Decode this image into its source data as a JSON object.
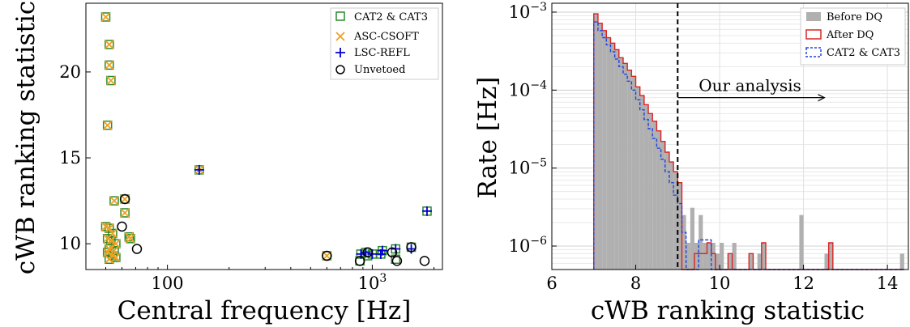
{
  "chart_data": [
    {
      "type": "scatter",
      "xscale": "log",
      "xlim": [
        40,
        2200
      ],
      "ylim": [
        8.5,
        24
      ],
      "xlabel": "Central frequency [Hz]",
      "ylabel": "cWB ranking statistic",
      "xticks": [
        {
          "label": "100",
          "value": 100
        },
        {
          "label": "10",
          "exp": "3",
          "value": 1000
        }
      ],
      "yticks": [
        10,
        15,
        20
      ],
      "legend_position": "top-right",
      "legend": [
        "CAT2 & CAT3",
        "ASC-CSOFT",
        "LSC-REFL",
        "Unvetoed"
      ],
      "series": [
        {
          "name": "CAT2 & CAT3",
          "marker": "square",
          "color": "#2a8a2a",
          "points": [
            [
              50,
              23.2
            ],
            [
              52,
              21.6
            ],
            [
              52,
              20.4
            ],
            [
              53,
              19.5
            ],
            [
              51,
              16.9
            ],
            [
              55,
              12.5
            ],
            [
              50,
              11.0
            ],
            [
              52,
              10.9
            ],
            [
              54,
              10.6
            ],
            [
              51,
              10.3
            ],
            [
              53,
              10.2
            ],
            [
              56,
              10.0
            ],
            [
              52,
              9.7
            ],
            [
              55,
              9.6
            ],
            [
              51,
              9.5
            ],
            [
              54,
              9.3
            ],
            [
              52,
              9.1
            ],
            [
              56,
              9.2
            ],
            [
              62,
              12.6
            ],
            [
              62,
              11.8
            ],
            [
              65,
              10.4
            ],
            [
              66,
              10.3
            ],
            [
              143,
              14.3
            ],
            [
              600,
              9.3
            ],
            [
              870,
              9.0
            ],
            [
              880,
              9.4
            ],
            [
              930,
              9.5
            ],
            [
              950,
              9.3
            ],
            [
              1000,
              9.4
            ],
            [
              1100,
              9.4
            ],
            [
              1120,
              9.6
            ],
            [
              1300,
              9.7
            ],
            [
              1300,
              9.1
            ],
            [
              1550,
              9.8
            ],
            [
              1850,
              11.9
            ]
          ]
        },
        {
          "name": "ASC-CSOFT",
          "marker": "x",
          "color": "#f0a020",
          "points": [
            [
              50,
              23.2
            ],
            [
              52,
              21.6
            ],
            [
              52,
              20.4
            ],
            [
              53,
              19.5
            ],
            [
              51,
              16.9
            ],
            [
              55,
              12.5
            ],
            [
              50,
              11.0
            ],
            [
              52,
              10.9
            ],
            [
              54,
              10.6
            ],
            [
              51,
              10.3
            ],
            [
              53,
              10.2
            ],
            [
              56,
              10.0
            ],
            [
              52,
              9.7
            ],
            [
              55,
              9.6
            ],
            [
              51,
              9.5
            ],
            [
              54,
              9.3
            ],
            [
              52,
              9.1
            ],
            [
              56,
              9.2
            ],
            [
              62,
              12.6
            ],
            [
              62,
              11.8
            ],
            [
              65,
              10.4
            ],
            [
              66,
              10.3
            ],
            [
              143,
              14.3
            ],
            [
              600,
              9.3
            ]
          ]
        },
        {
          "name": "LSC-REFL",
          "marker": "plus",
          "color": "#0000cc",
          "points": [
            [
              143,
              14.3
            ],
            [
              880,
              9.4
            ],
            [
              930,
              9.5
            ],
            [
              1000,
              9.4
            ],
            [
              1100,
              9.4
            ],
            [
              1120,
              9.6
            ],
            [
              1300,
              9.7
            ],
            [
              1550,
              9.7
            ],
            [
              1850,
              11.9
            ]
          ]
        },
        {
          "name": "Unvetoed",
          "marker": "circle",
          "color": "#000000",
          "points": [
            [
              62,
              12.6
            ],
            [
              60,
              11.0
            ],
            [
              71,
              9.7
            ],
            [
              600,
              9.3
            ],
            [
              870,
              9.0
            ],
            [
              950,
              9.5
            ],
            [
              1250,
              9.5
            ],
            [
              1320,
              9.0
            ],
            [
              1550,
              9.8
            ],
            [
              1800,
              9.0
            ]
          ]
        }
      ]
    },
    {
      "type": "histogram",
      "yscale": "log",
      "xlim": [
        6,
        14.5
      ],
      "ylim": [
        5e-07,
        0.0013
      ],
      "xlabel": "cWB ranking statistic",
      "ylabel": "Rate [Hz]",
      "xticks": [
        6,
        8,
        10,
        12,
        14
      ],
      "yticks": [
        {
          "label": "10",
          "exp": "−6",
          "value": 1e-06
        },
        {
          "label": "10",
          "exp": "−5",
          "value": 1e-05
        },
        {
          "label": "10",
          "exp": "−4",
          "value": 0.0001
        },
        {
          "label": "10",
          "exp": "−3",
          "value": 0.001
        }
      ],
      "threshold": 9,
      "annotation": "Our analysis",
      "legend_position": "top-right",
      "legend": [
        "Before DQ",
        "After DQ",
        "CAT2 & CAT3"
      ],
      "bin_edges": [
        7.0,
        7.1,
        7.2,
        7.3,
        7.4,
        7.5,
        7.6,
        7.7,
        7.8,
        7.9,
        8.0,
        8.1,
        8.2,
        8.3,
        8.4,
        8.5,
        8.6,
        8.7,
        8.8,
        8.9,
        9.0,
        9.1,
        9.2,
        9.3,
        9.4,
        9.5,
        9.6,
        9.7,
        9.8,
        9.9,
        10.0,
        10.1,
        10.2,
        10.3,
        10.4,
        10.5,
        10.6,
        10.7,
        10.8,
        10.9,
        11.0,
        11.1,
        11.2,
        11.3,
        11.4,
        11.5,
        11.6,
        11.7,
        11.8,
        11.9,
        12.0,
        12.1,
        12.2,
        12.3,
        12.4,
        12.5,
        12.6,
        12.7,
        12.8,
        12.9,
        13.0,
        13.1,
        13.2,
        13.3,
        13.4,
        13.5,
        13.6,
        13.7,
        13.8,
        13.9,
        14.0,
        14.1,
        14.2,
        14.3,
        14.4
      ],
      "series": [
        {
          "name": "Before DQ",
          "style": "filled",
          "color": "#b0b0b0",
          "values": [
            0.00095,
            0.00072,
            0.00058,
            0.00047,
            0.0004,
            0.00033,
            0.00026,
            0.00022,
            0.00018,
            0.00015,
            0.00011,
            8.5e-05,
            6.5e-05,
            5e-05,
            4e-05,
            3e-05,
            2.2e-05,
            1.6e-05,
            1.2e-05,
            9e-06,
            6.5e-06,
            2.5e-06,
            1.1e-06,
            3.1e-06,
            1.1e-06,
            2.5e-06,
            1.1e-06,
            1.1e-06,
            1.1e-06,
            8e-07,
            1.1e-06,
            0,
            8e-07,
            1.1e-06,
            0,
            0,
            0,
            8e-07,
            0,
            8e-07,
            1.1e-06,
            0,
            0,
            0,
            0,
            0,
            0,
            0,
            0,
            2.5e-06,
            0,
            0,
            0,
            0,
            0,
            8e-07,
            1.1e-06,
            0,
            0,
            0,
            0,
            0,
            0,
            0,
            0,
            0,
            0,
            0,
            0,
            0,
            0,
            0,
            0,
            8e-07
          ]
        },
        {
          "name": "After DQ",
          "style": "step",
          "color": "#dd2222",
          "values": [
            0.00095,
            0.00072,
            0.00058,
            0.00047,
            0.0004,
            0.00033,
            0.00026,
            0.00022,
            0.00018,
            0.00015,
            0.00011,
            8.5e-05,
            6.5e-05,
            5e-05,
            4e-05,
            3e-05,
            2.2e-05,
            1.6e-05,
            1.2e-05,
            9e-06,
            6.5e-06,
            0,
            0,
            0,
            8e-07,
            8e-07,
            8e-07,
            1.1e-06,
            8e-07,
            0,
            0,
            0,
            8e-07,
            0,
            0,
            0,
            0,
            8e-07,
            0,
            0,
            1.1e-06,
            0,
            0,
            0,
            0,
            0,
            0,
            0,
            0,
            0,
            0,
            0,
            0,
            0,
            0,
            0,
            1.1e-06,
            0,
            0,
            0,
            0,
            0,
            0,
            0,
            0,
            0,
            0,
            0,
            0,
            0,
            0,
            0,
            0,
            0
          ]
        },
        {
          "name": "CAT2 & CAT3",
          "style": "dashed-step",
          "color": "#2244dd",
          "values": [
            0.00075,
            0.00058,
            0.00047,
            0.00038,
            0.00031,
            0.00025,
            0.0002,
            0.00016,
            0.00013,
            0.0001,
            7.5e-05,
            5.6e-05,
            4.2e-05,
            3.2e-05,
            2.4e-05,
            1.8e-05,
            1.3e-05,
            9e-06,
            6.5e-06,
            4.5e-06,
            3.5e-06,
            1.5e-06,
            0,
            0,
            0,
            1.2e-06,
            1.2e-06,
            1.2e-06,
            0,
            0,
            0,
            0,
            0,
            0,
            0,
            0,
            0,
            0,
            0,
            0,
            0,
            0,
            0,
            0,
            0,
            0,
            0,
            0,
            0,
            0,
            0,
            0,
            0,
            0,
            0,
            0,
            0,
            0,
            0,
            0,
            0,
            0,
            0,
            0,
            0,
            0,
            0,
            0,
            0,
            0,
            0,
            0,
            0,
            0
          ]
        }
      ]
    }
  ]
}
